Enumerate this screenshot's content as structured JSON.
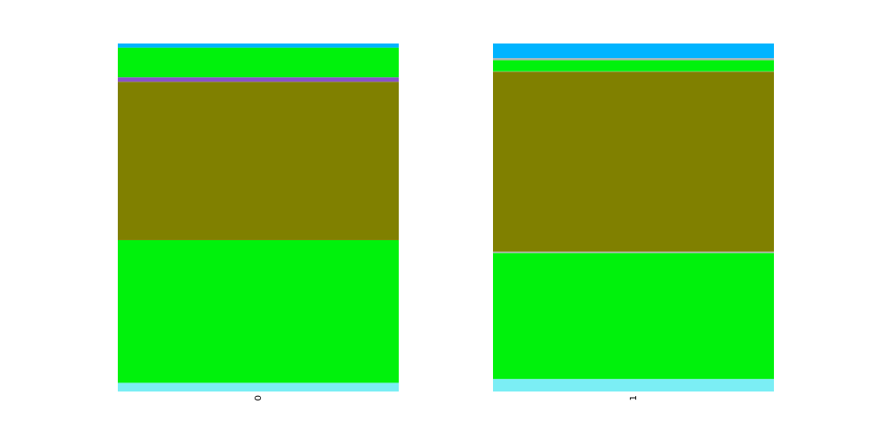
{
  "chart_data": {
    "type": "bar",
    "stacked": true,
    "normalized": true,
    "categories": [
      "0",
      "1"
    ],
    "series": [
      {
        "color": "#7beef5",
        "values": [
          0.025,
          0.036
        ]
      },
      {
        "color": "#00f20c",
        "values": [
          0.41,
          0.362
        ]
      },
      {
        "color": "#b4b4b4",
        "values": [
          0.0,
          0.004
        ]
      },
      {
        "color": "#808000",
        "values": [
          0.455,
          0.517
        ]
      },
      {
        "color": "#8a52c7",
        "values": [
          0.013,
          0.0
        ]
      },
      {
        "color": "#b4b4b4",
        "values": [
          0.0,
          0.001
        ]
      },
      {
        "color": "#00f20c",
        "values": [
          0.085,
          0.032
        ]
      },
      {
        "color": "#b4b4b4",
        "values": [
          0.0,
          0.006
        ]
      },
      {
        "color": "#00b4ff",
        "values": [
          0.012,
          0.042
        ]
      }
    ],
    "ylim": [
      0,
      1
    ],
    "xtick_rotation": "vertical",
    "grid": false,
    "legend": "none",
    "axes_visible": false
  }
}
